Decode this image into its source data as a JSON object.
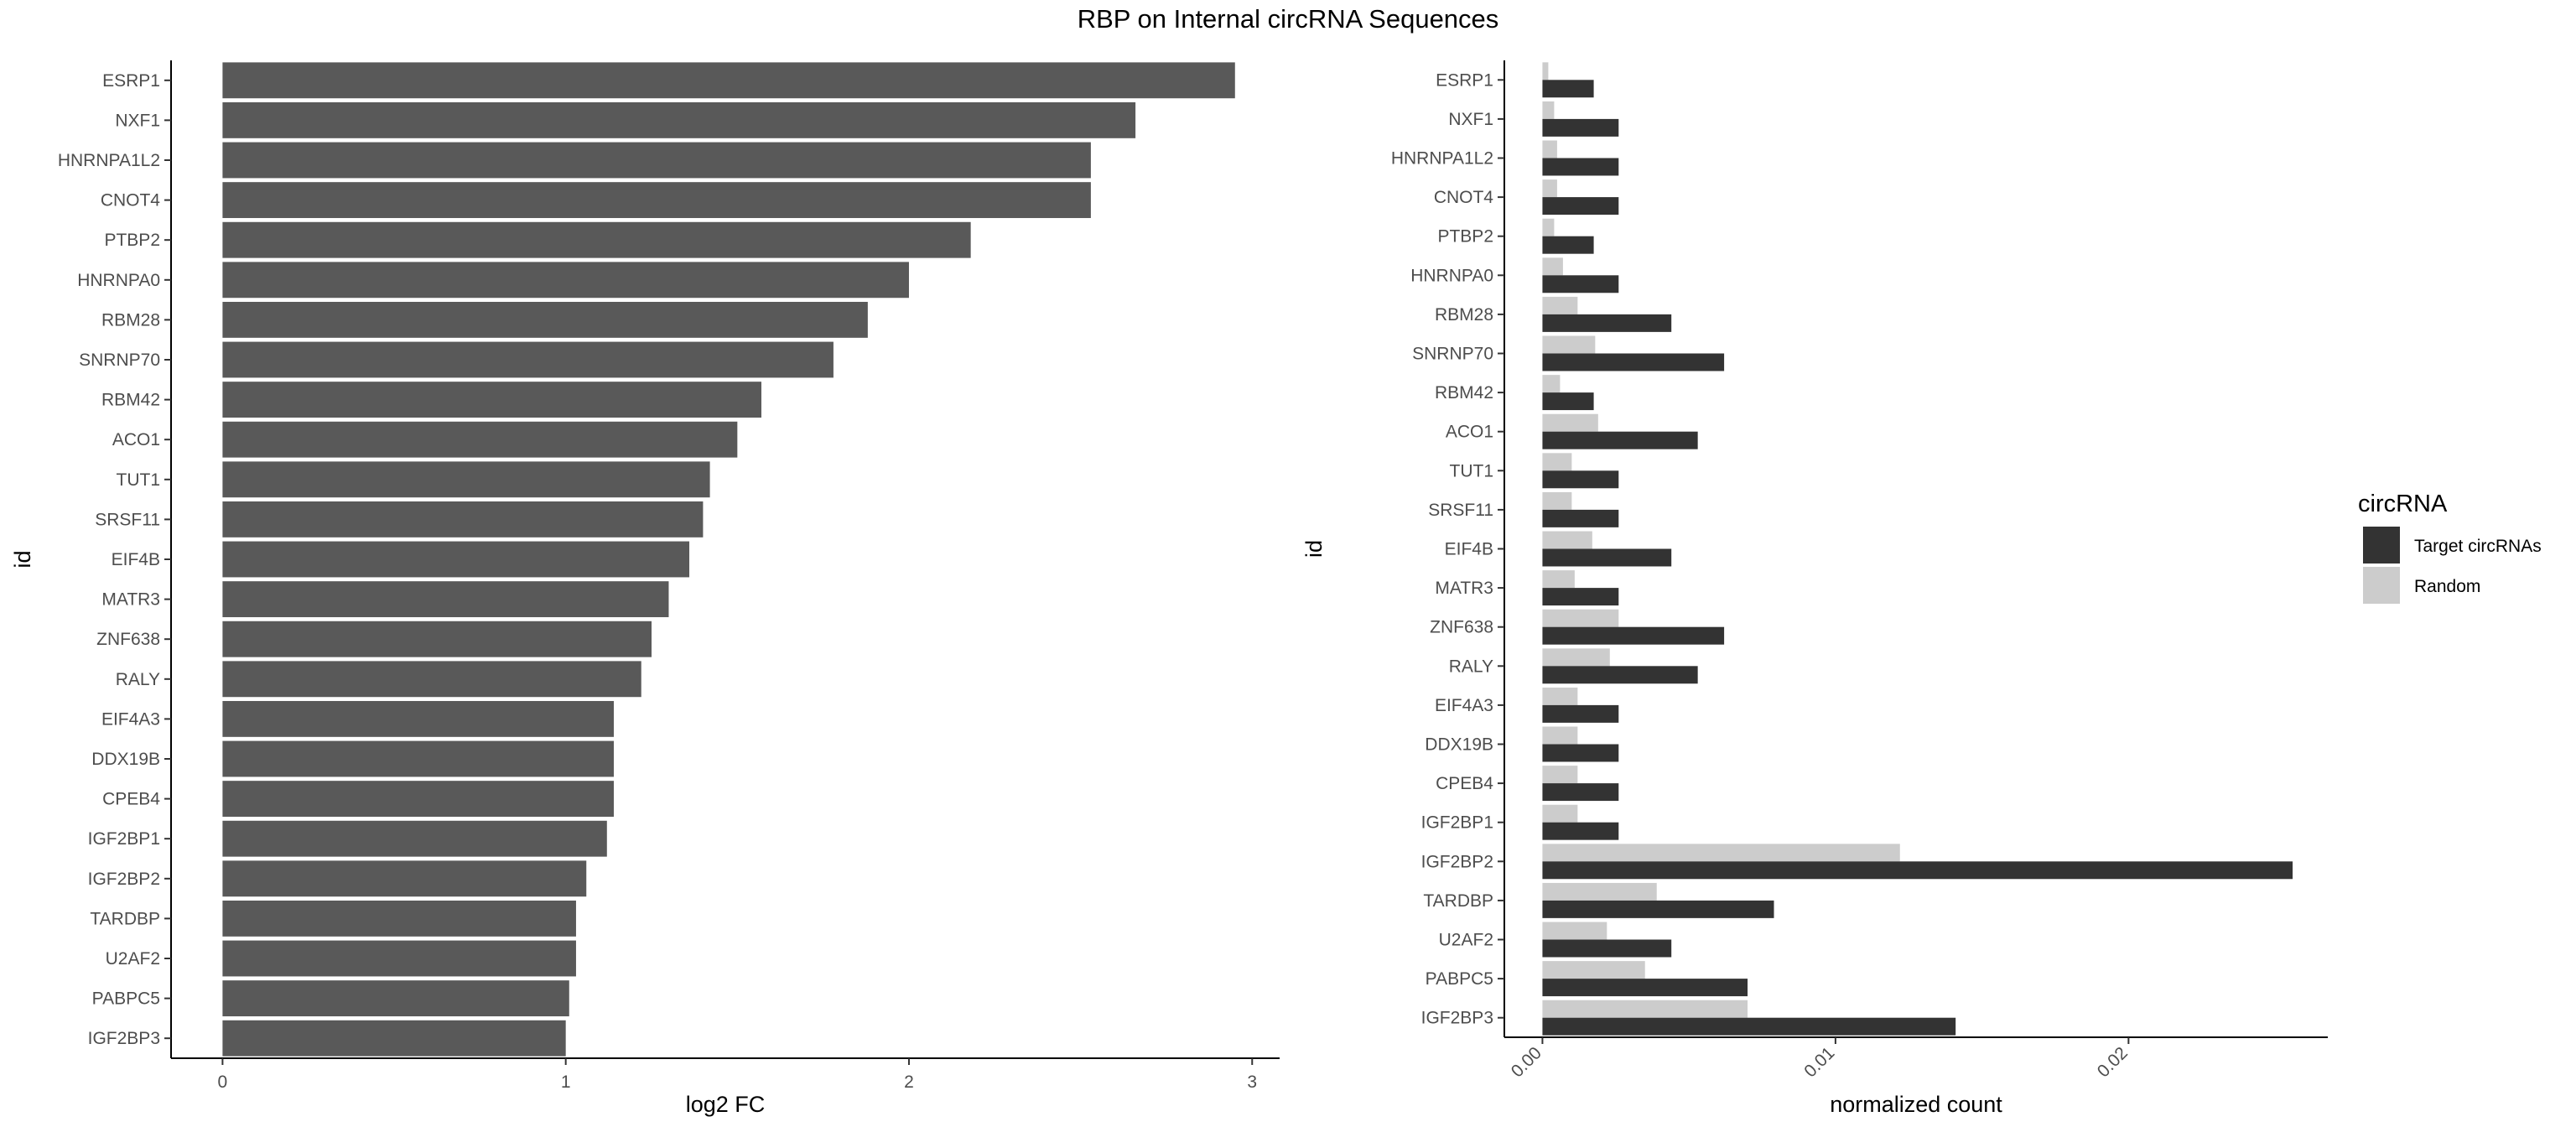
{
  "title": "RBP on Internal circRNA Sequences",
  "colors": {
    "bar_left": "#595959",
    "target": "#333333",
    "random": "#cccccc",
    "axis": "#000000"
  },
  "chart_data": [
    {
      "type": "bar",
      "orientation": "horizontal",
      "xlabel": "log2 FC",
      "ylabel": "id",
      "xlim": [
        -0.15,
        3.08
      ],
      "xticks": [
        "0",
        "1",
        "2",
        "3"
      ],
      "xtick_values": [
        0,
        1,
        2,
        3
      ],
      "grid": false,
      "categories": [
        "ESRP1",
        "NXF1",
        "HNRNPA1L2",
        "CNOT4",
        "PTBP2",
        "HNRNPA0",
        "RBM28",
        "SNRNP70",
        "RBM42",
        "ACO1",
        "TUT1",
        "SRSF11",
        "EIF4B",
        "MATR3",
        "ZNF638",
        "RALY",
        "EIF4A3",
        "DDX19B",
        "CPEB4",
        "IGF2BP1",
        "IGF2BP2",
        "TARDBP",
        "U2AF2",
        "PABPC5",
        "IGF2BP3"
      ],
      "values": [
        2.95,
        2.66,
        2.53,
        2.53,
        2.18,
        2.0,
        1.88,
        1.78,
        1.57,
        1.5,
        1.42,
        1.4,
        1.36,
        1.3,
        1.25,
        1.22,
        1.14,
        1.14,
        1.14,
        1.12,
        1.06,
        1.03,
        1.03,
        1.01,
        1.0
      ]
    },
    {
      "type": "bar",
      "orientation": "horizontal",
      "xlabel": "normalized count",
      "ylabel": "id",
      "xlim": [
        -0.0013,
        0.0268
      ],
      "xticks": [
        "0.00",
        "0.01",
        "0.02"
      ],
      "xtick_values": [
        0,
        0.01,
        0.02
      ],
      "grid": false,
      "legend": {
        "title": "circRNA",
        "placement": "right"
      },
      "categories": [
        "ESRP1",
        "NXF1",
        "HNRNPA1L2",
        "CNOT4",
        "PTBP2",
        "HNRNPA0",
        "RBM28",
        "SNRNP70",
        "RBM42",
        "ACO1",
        "TUT1",
        "SRSF11",
        "EIF4B",
        "MATR3",
        "ZNF638",
        "RALY",
        "EIF4A3",
        "DDX19B",
        "CPEB4",
        "IGF2BP1",
        "IGF2BP2",
        "TARDBP",
        "U2AF2",
        "PABPC5",
        "IGF2BP3"
      ],
      "series": [
        {
          "name": "Target circRNAs",
          "values": [
            0.00175,
            0.0026,
            0.0026,
            0.0026,
            0.00175,
            0.0026,
            0.0044,
            0.0062,
            0.00175,
            0.0053,
            0.0026,
            0.0026,
            0.0044,
            0.0026,
            0.0062,
            0.0053,
            0.0026,
            0.0026,
            0.0026,
            0.0026,
            0.0256,
            0.0079,
            0.0044,
            0.007,
            0.0141
          ]
        },
        {
          "name": "Random",
          "values": [
            0.0002,
            0.0004,
            0.0005,
            0.0005,
            0.0004,
            0.0007,
            0.0012,
            0.0018,
            0.0006,
            0.0019,
            0.001,
            0.001,
            0.0017,
            0.0011,
            0.0026,
            0.0023,
            0.0012,
            0.0012,
            0.0012,
            0.0012,
            0.0122,
            0.0039,
            0.0022,
            0.0035,
            0.007
          ]
        }
      ]
    }
  ]
}
